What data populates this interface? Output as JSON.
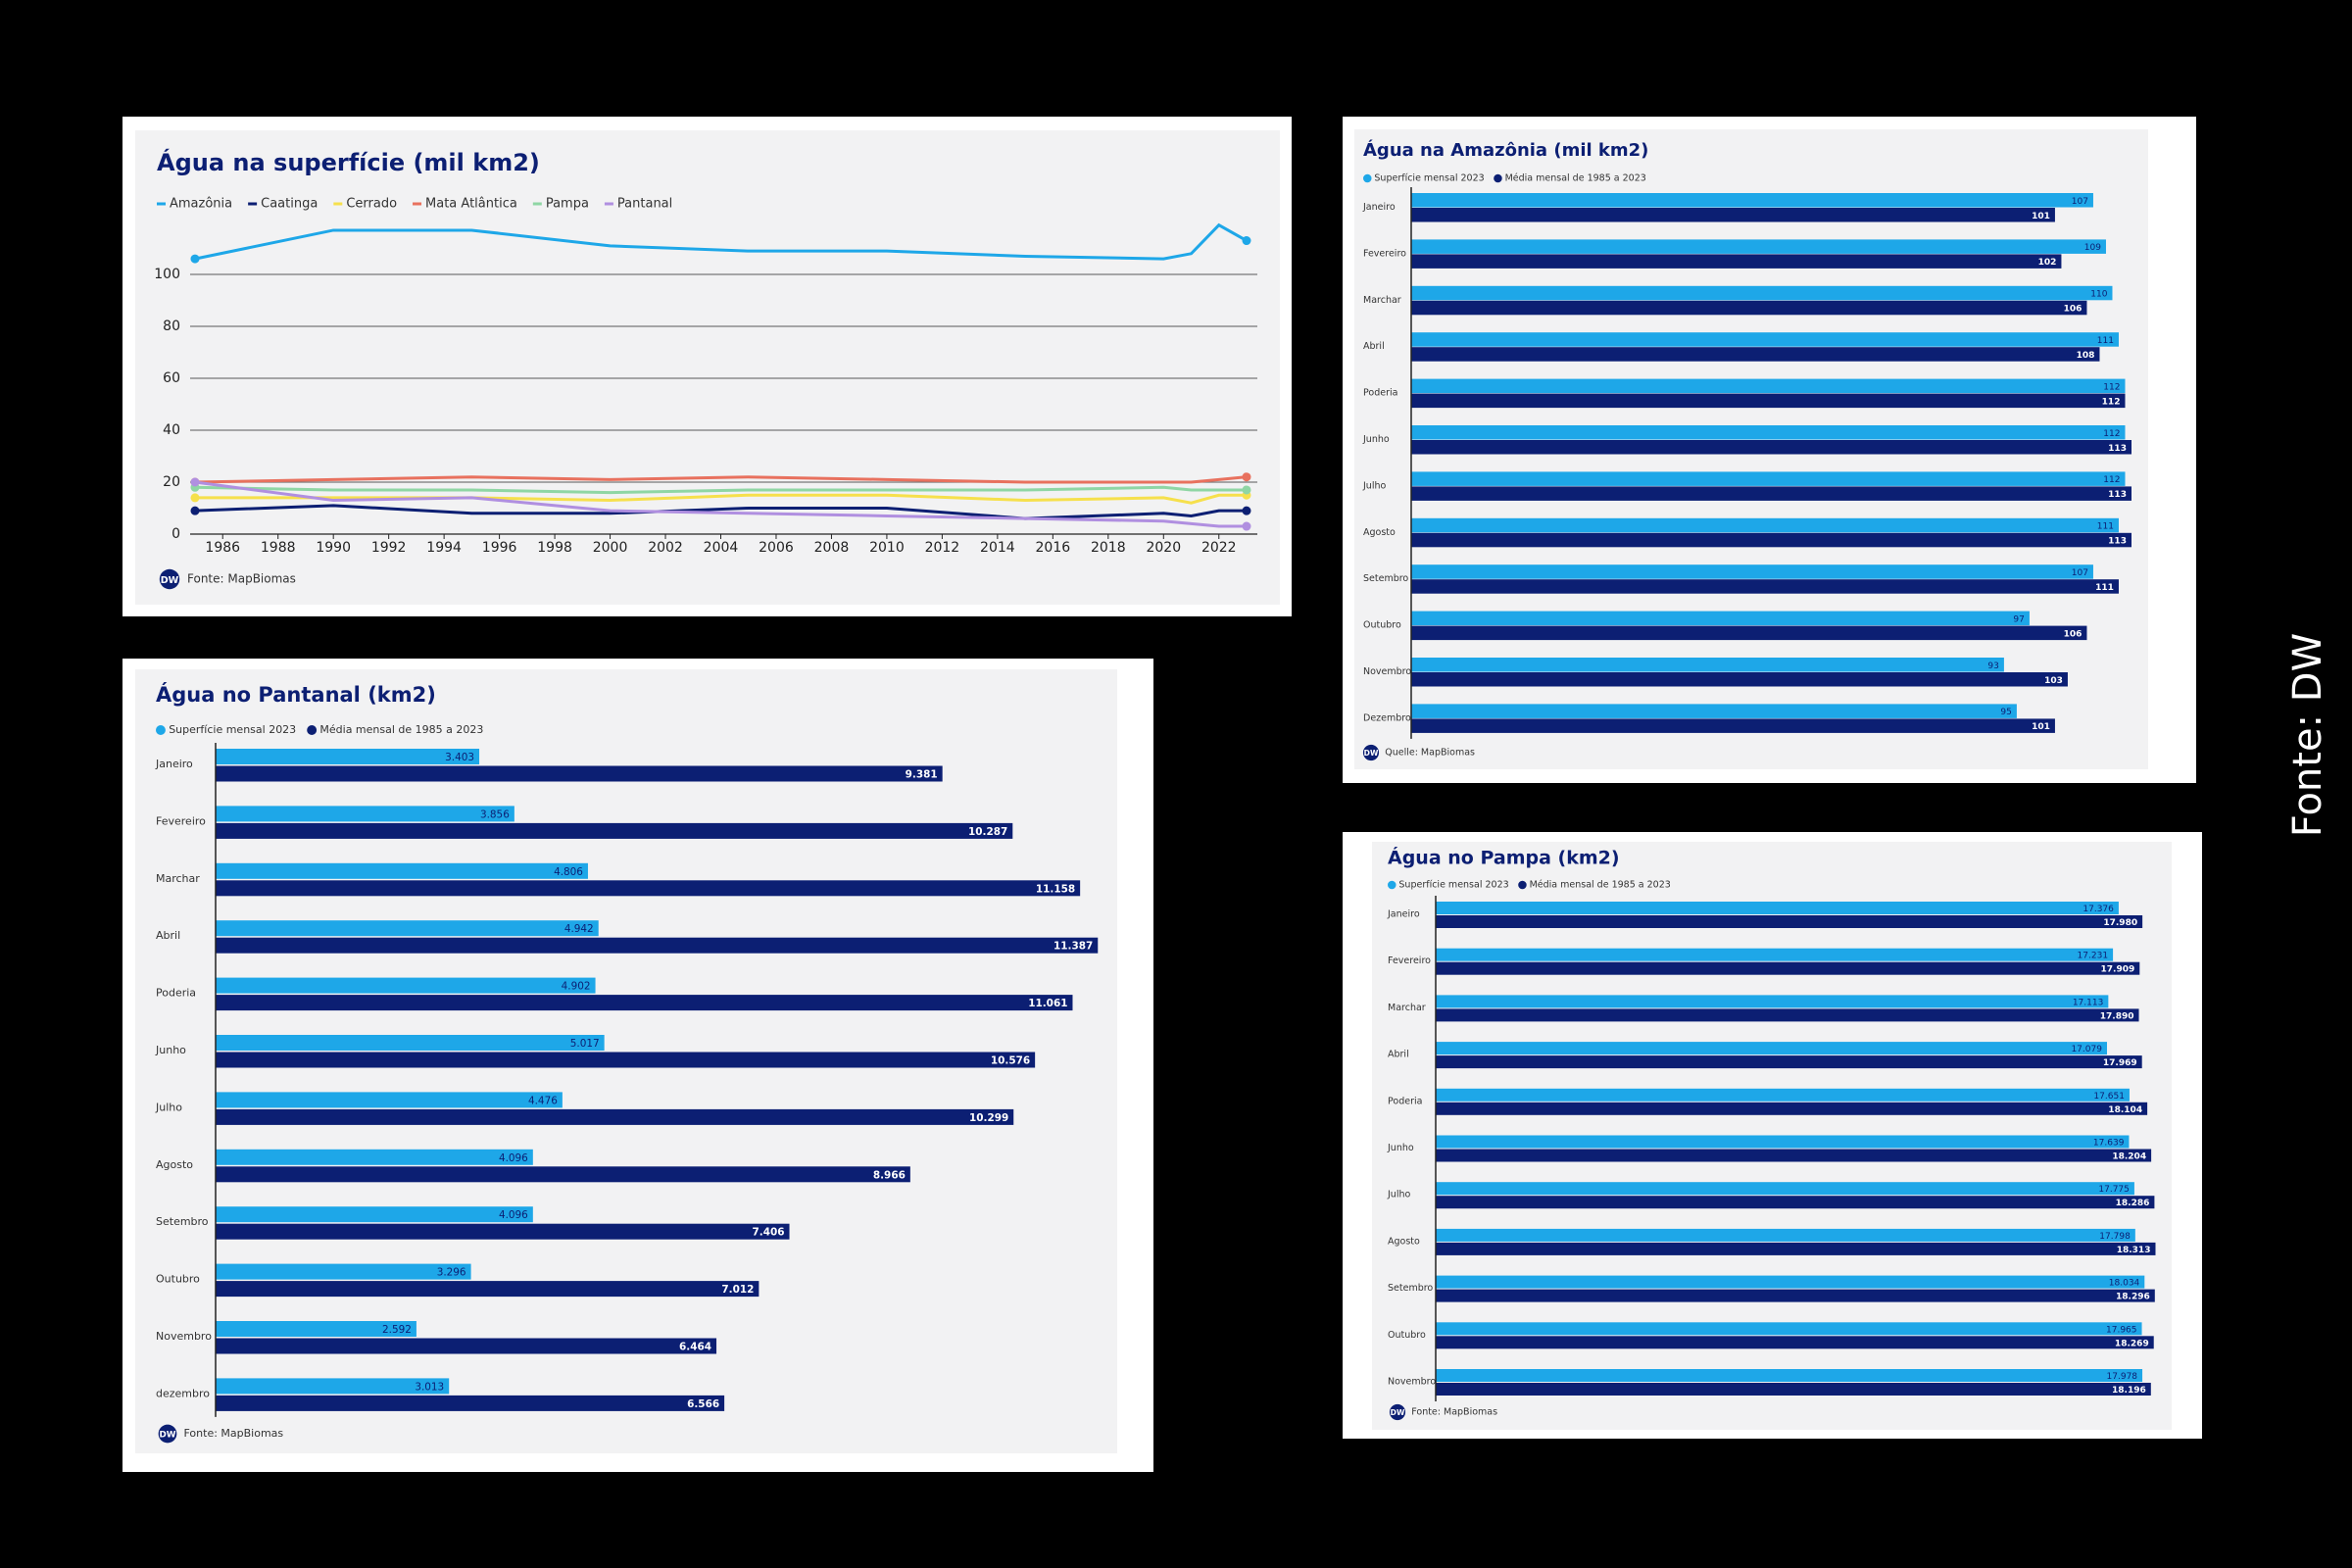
{
  "chart_data": [
    {
      "type": "line",
      "title": "Água na superfície (mil km2)",
      "source": "Fonte: MapBiomas",
      "logo": "DW",
      "x": [
        1985,
        1990,
        1995,
        2000,
        2005,
        2010,
        2015,
        2020,
        2021,
        2022,
        2023
      ],
      "series": [
        {
          "name": "Amazônia",
          "color": "#1ea7e8",
          "values": [
            106,
            117,
            117,
            111,
            109,
            109,
            107,
            106,
            108,
            119,
            113
          ]
        },
        {
          "name": "Caatinga",
          "color": "#0c1f73",
          "values": [
            9,
            11,
            8,
            8,
            10,
            10,
            6,
            8,
            7,
            9,
            9
          ]
        },
        {
          "name": "Cerrado",
          "color": "#f6e04c",
          "values": [
            14,
            14,
            14,
            13,
            15,
            15,
            13,
            14,
            12,
            15,
            15
          ]
        },
        {
          "name": "Mata Atlântica",
          "color": "#e8715e",
          "values": [
            20,
            21,
            22,
            21,
            22,
            21,
            20,
            20,
            20,
            21,
            22
          ]
        },
        {
          "name": "Pampa",
          "color": "#8fd6a4",
          "values": [
            18,
            17,
            17,
            16,
            17,
            17,
            17,
            18,
            17,
            17,
            17
          ]
        },
        {
          "name": "Pantanal",
          "color": "#b08fe0",
          "values": [
            20,
            13,
            14,
            9,
            8,
            7,
            6,
            5,
            4,
            3,
            3
          ]
        }
      ],
      "xlim": [
        1985,
        2023
      ],
      "ylim": [
        0,
        120
      ],
      "xticks": [
        1986,
        1988,
        1990,
        1992,
        1994,
        1996,
        1998,
        2000,
        2002,
        2004,
        2006,
        2008,
        2010,
        2012,
        2014,
        2016,
        2018,
        2020,
        2022
      ],
      "yticks": [
        0,
        20,
        40,
        60,
        80,
        100
      ],
      "grid": true
    },
    {
      "type": "bar",
      "orientation": "horizontal",
      "title": "Água na Amazônia (mil km2)",
      "source": "Quelle: MapBiomas",
      "logo": "DW",
      "categories": [
        "Janeiro",
        "Fevereiro",
        "Marchar",
        "Abril",
        "Poderia",
        "Junho",
        "Julho",
        "Agosto",
        "Setembro",
        "Outubro",
        "Novembro",
        "Dezembro"
      ],
      "series": [
        {
          "name": "Superfície mensal 2023",
          "color": "#1ea7e8",
          "values": [
            107,
            109,
            110,
            111,
            112,
            112,
            112,
            111,
            107,
            97,
            93,
            95
          ]
        },
        {
          "name": "Média mensal de 1985 a 2023",
          "color": "#0c1f73",
          "values": [
            101,
            102,
            106,
            108,
            112,
            113,
            113,
            113,
            111,
            106,
            103,
            101
          ]
        }
      ],
      "xlim": [
        0,
        115
      ]
    },
    {
      "type": "bar",
      "orientation": "horizontal",
      "title": "Água no Pantanal (km2)",
      "source": "Fonte: MapBiomas",
      "logo": "DW",
      "categories": [
        "Janeiro",
        "Fevereiro",
        "Marchar",
        "Abril",
        "Poderia",
        "Junho",
        "Julho",
        "Agosto",
        "Setembro",
        "Outubro",
        "Novembro",
        "dezembro"
      ],
      "series": [
        {
          "name": "Superfície mensal 2023",
          "color": "#1ea7e8",
          "values": [
            3403,
            3856,
            4806,
            4942,
            4902,
            5017,
            4476,
            4096,
            4096,
            3296,
            2592,
            3013
          ],
          "value_labels": [
            "3.403",
            "3.856",
            "4.806",
            "4.942",
            "4.902",
            "5.017",
            "4.476",
            "4.096",
            "4.096",
            "3.296",
            "2.592",
            "3.013"
          ]
        },
        {
          "name": "Média mensal de 1985 a 2023",
          "color": "#0c1f73",
          "values": [
            9381,
            10287,
            11158,
            11387,
            11061,
            10576,
            10299,
            8966,
            7406,
            7012,
            6464,
            6566
          ],
          "value_labels": [
            "9.381",
            "10.287",
            "11.158",
            "11.387",
            "11.061",
            "10.576",
            "10.299",
            "8.966",
            "7.406",
            "7.012",
            "6.464",
            "6.566"
          ]
        }
      ],
      "xlim": [
        0,
        11700
      ]
    },
    {
      "type": "bar",
      "orientation": "horizontal",
      "title": "Água no Pampa (km2)",
      "source": "Fonte: MapBiomas",
      "logo": "DW",
      "categories": [
        "Janeiro",
        "Fevereiro",
        "Marchar",
        "Abril",
        "Poderia",
        "Junho",
        "Julho",
        "Agosto",
        "Setembro",
        "Outubro",
        "Novembro"
      ],
      "series": [
        {
          "name": "Superfície mensal 2023",
          "color": "#1ea7e8",
          "values": [
            17376,
            17231,
            17113,
            17079,
            17651,
            17639,
            17775,
            17798,
            18034,
            17965,
            17978
          ],
          "value_labels": [
            "17.376",
            "17.231",
            "17.113",
            "17.079",
            "17.651",
            "17.639",
            "17.775",
            "17.798",
            "18.034",
            "17.965",
            "17.978"
          ]
        },
        {
          "name": "Média mensal de 1985 a 2023",
          "color": "#0c1f73",
          "values": [
            17980,
            17909,
            17890,
            17969,
            18104,
            18204,
            18286,
            18313,
            18296,
            18269,
            18196
          ],
          "value_labels": [
            "17.980",
            "17.909",
            "17.890",
            "17.969",
            "18.104",
            "18.204",
            "18.286",
            "18.313",
            "18.296",
            "18.269",
            "18.196"
          ]
        }
      ],
      "xlim": [
        0,
        18600
      ]
    }
  ],
  "side_note": "Fonte: DW"
}
